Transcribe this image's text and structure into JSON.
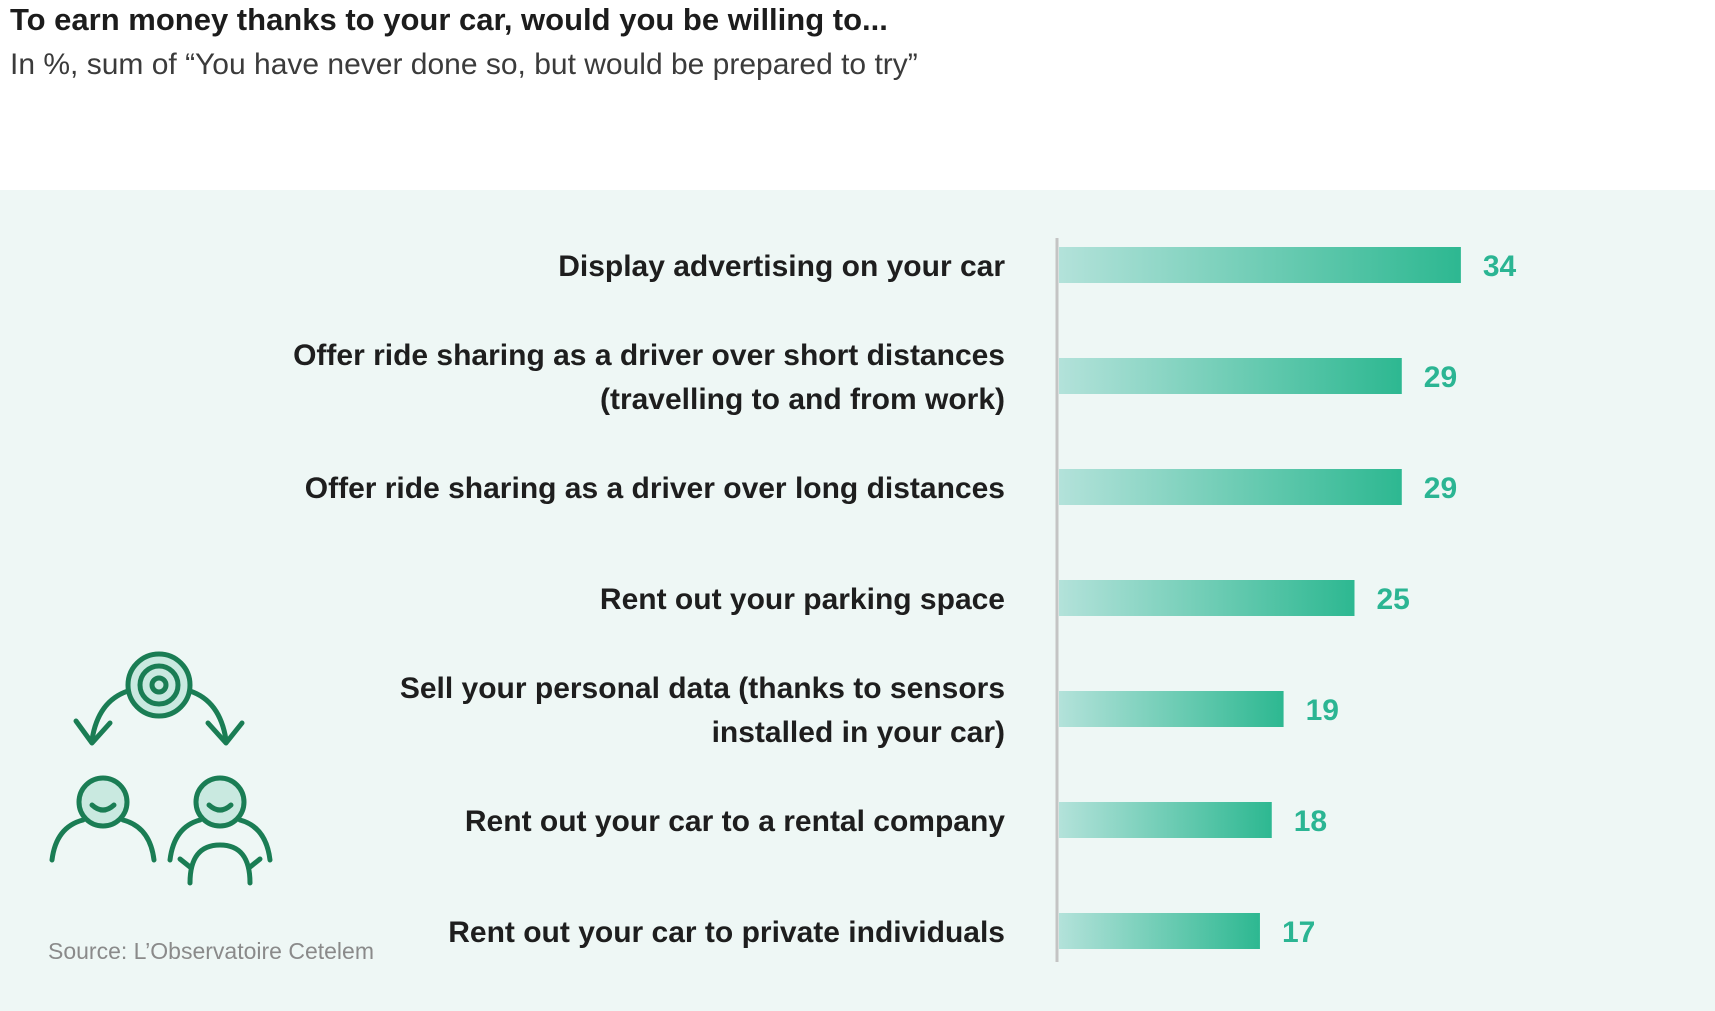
{
  "title": "To earn money thanks to your car, would you be willing to...",
  "subtitle": "In %, sum of “You have never done so, but would be prepared to try”",
  "source": "Source: L’Observatoire Cetelem",
  "illustration_icon": "target-arrows-people-icon",
  "colors": {
    "bar_start": "#b3e2da",
    "bar_end": "#2db891",
    "value_text": "#2bb593",
    "panel_bg": "#eef7f5",
    "icon": "#1a7d54"
  },
  "chart_data": {
    "type": "bar",
    "orientation": "horizontal",
    "title": "To earn money thanks to your car, would you be willing to...",
    "subtitle": "In %, sum of “You have never done so, but would be prepared to try”",
    "categories": [
      [
        "Display advertising on your car"
      ],
      [
        "Offer ride sharing as a driver over short distances",
        "(travelling to and from work)"
      ],
      [
        "Offer ride sharing as a driver over long distances"
      ],
      [
        "Rent out your parking space"
      ],
      [
        "Sell your personal data (thanks to sensors",
        "installed in your car)"
      ],
      [
        "Rent out your car to a rental company"
      ],
      [
        "Rent out your car to private individuals"
      ]
    ],
    "values": [
      34,
      29,
      29,
      25,
      19,
      18,
      17
    ],
    "value_labels": [
      "34",
      "29",
      "29",
      "25",
      "19",
      "18",
      "17"
    ],
    "xlim": [
      0,
      40
    ],
    "grid": false,
    "legend": "none"
  }
}
